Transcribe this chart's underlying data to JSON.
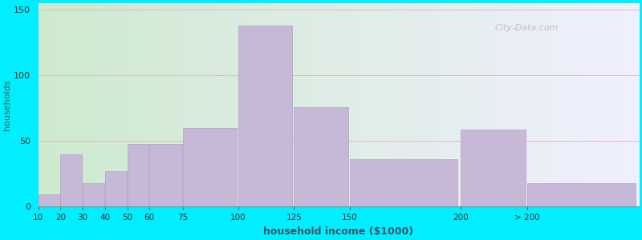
{
  "xlabel": "household income ($1000)",
  "ylabel": "households",
  "bar_labels": [
    "10",
    "20",
    "30",
    "40",
    "50",
    "60",
    "75",
    "100",
    "125",
    "150",
    "200",
    "> 200"
  ],
  "bar_values": [
    9,
    40,
    18,
    27,
    48,
    48,
    60,
    138,
    76,
    36,
    59,
    18
  ],
  "bar_color": "#c8b8d8",
  "bar_edgecolor": "#b0a0c8",
  "background_color": "#00eeff",
  "plot_bg_color_left": "#ceeace",
  "plot_bg_color_right": "#f0f0ff",
  "title_fontsize": 12,
  "subtitle_fontsize": 10,
  "subtitle_color": "#336666",
  "ylabel_color": "#336655",
  "xlabel_color": "#445566",
  "watermark": "City-Data.com",
  "ylim": [
    0,
    155
  ],
  "yticks": [
    0,
    50,
    100,
    150
  ],
  "display_edges": [
    0,
    1,
    2,
    3,
    4,
    5,
    6.5,
    9,
    11.5,
    14,
    19,
    22,
    27
  ]
}
